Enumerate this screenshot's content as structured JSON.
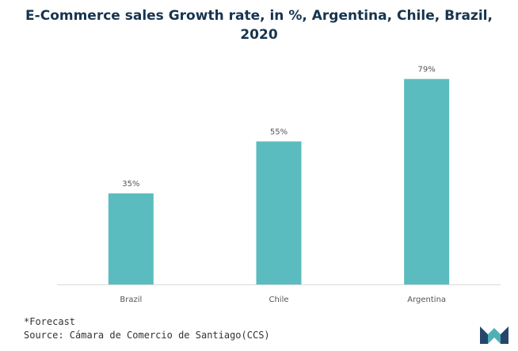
{
  "colors": {
    "bar": "#5bbcbf",
    "title": "#17344f",
    "axis": "#d9d9d9",
    "tick_label": "#555555",
    "logo_dark": "#27466b",
    "logo_light": "#4fb0b5"
  },
  "chart_data": {
    "type": "bar",
    "title": "E-Commerce sales Growth rate, in %, Argentina, Chile, Brazil, 2020",
    "categories": [
      "Brazil",
      "Chile",
      "Argentina"
    ],
    "values": [
      35,
      55,
      79
    ],
    "data_labels": [
      "35%",
      "55%",
      "79%"
    ],
    "xlabel": "",
    "ylabel": "",
    "ylim": [
      0,
      85
    ],
    "grid": false,
    "legend": "none"
  },
  "footer": {
    "note": "*Forecast",
    "source": "Source: Cámara de Comercio de Santiago(CCS)"
  },
  "logo": {
    "icon": "mordor-intelligence-logo-icon"
  }
}
